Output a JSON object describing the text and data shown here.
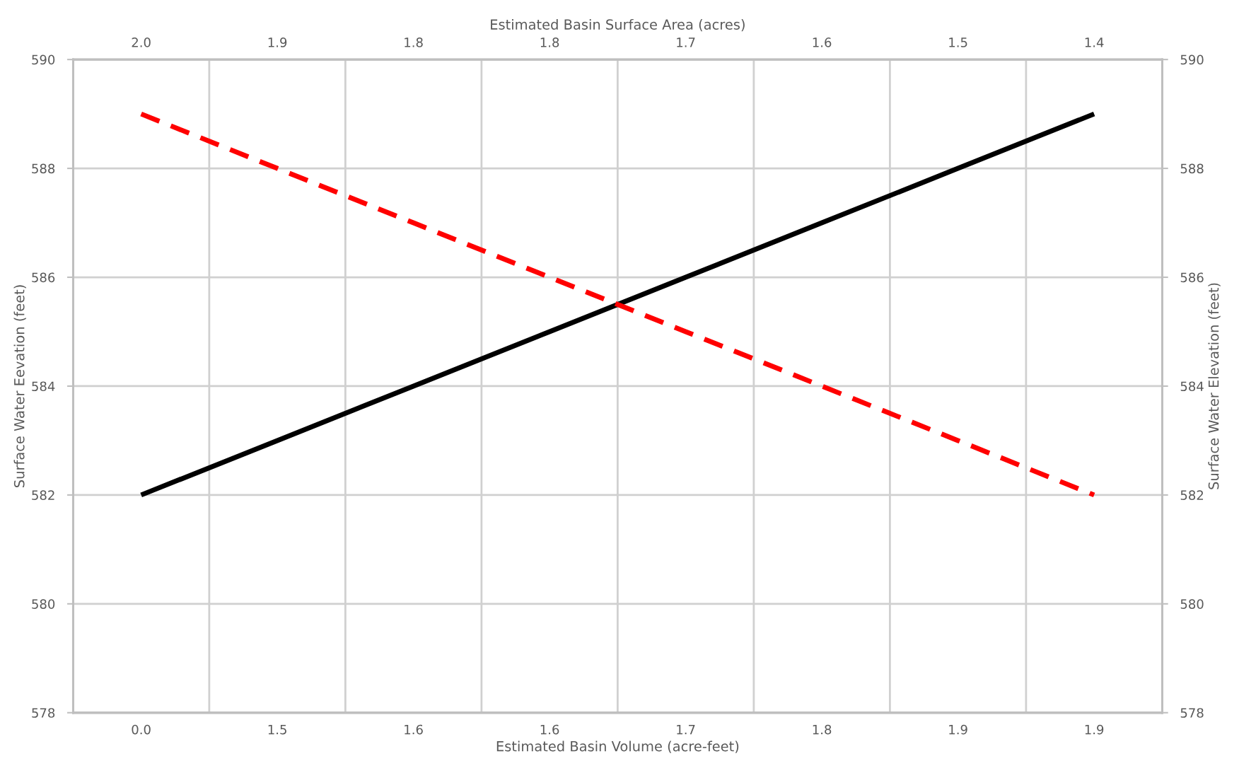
{
  "chart_data": {
    "type": "line",
    "xlabel": "Estimated Basin Volume (acre-feet)",
    "x2label": "Estimated Basin Surface Area (acres)",
    "ylabel": "Surface Water Eevation (feet)",
    "y2label": "Surface Water Elevation (feet)",
    "categories": [
      "0.0",
      "1.5",
      "1.6",
      "1.6",
      "1.7",
      "1.8",
      "1.9",
      "1.9"
    ],
    "annotations": [
      "2.0",
      "1.9",
      "1.8",
      "1.8",
      "1.7",
      "1.6",
      "1.5",
      "1.4"
    ],
    "series": [
      {
        "color": "#000000",
        "line_style": "solid",
        "values": [
          582,
          583,
          584,
          585,
          586,
          587,
          588,
          589
        ]
      },
      {
        "color": "#ff0000",
        "line_style": "dashed",
        "values": [
          589,
          588,
          587,
          586,
          585,
          584,
          583,
          582
        ]
      }
    ],
    "ylim": [
      578,
      590
    ],
    "yticks": [
      578,
      580,
      582,
      584,
      586,
      588,
      590
    ],
    "y2lim": [
      578,
      590
    ],
    "y2ticks": [
      578,
      580,
      582,
      584,
      586,
      588,
      590
    ],
    "grid": true,
    "marker": "none"
  }
}
